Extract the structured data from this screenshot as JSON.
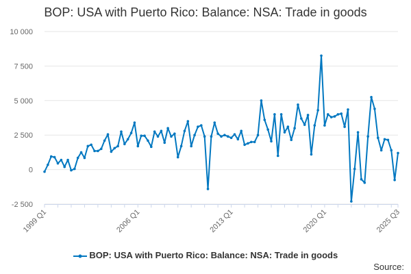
{
  "chart_data": {
    "type": "line",
    "title": "BOP: USA with Puerto Rico: Balance: NSA: Trade in goods",
    "xlabel": "",
    "ylabel": "",
    "ylim": [
      -2500,
      10000
    ],
    "yticks": [
      -2500,
      0,
      2500,
      5000,
      7500,
      10000
    ],
    "ytick_labels": [
      "-2 500",
      "0",
      "2 500",
      "5 000",
      "7 500",
      "10 000"
    ],
    "xtick_labels": [
      "1999 Q1",
      "2006 Q1",
      "2013 Q1",
      "2020 Q1",
      "2025 Q3"
    ],
    "grid": true,
    "legend_position": "bottom",
    "color": "#0077c0",
    "x": [
      "1999 Q1",
      "1999 Q2",
      "1999 Q3",
      "1999 Q4",
      "2000 Q1",
      "2000 Q2",
      "2000 Q3",
      "2000 Q4",
      "2001 Q1",
      "2001 Q2",
      "2001 Q3",
      "2001 Q4",
      "2002 Q1",
      "2002 Q2",
      "2002 Q3",
      "2002 Q4",
      "2003 Q1",
      "2003 Q2",
      "2003 Q3",
      "2003 Q4",
      "2004 Q1",
      "2004 Q2",
      "2004 Q3",
      "2004 Q4",
      "2005 Q1",
      "2005 Q2",
      "2005 Q3",
      "2005 Q4",
      "2006 Q1",
      "2006 Q2",
      "2006 Q3",
      "2006 Q4",
      "2007 Q1",
      "2007 Q2",
      "2007 Q3",
      "2007 Q4",
      "2008 Q1",
      "2008 Q2",
      "2008 Q3",
      "2008 Q4",
      "2009 Q1",
      "2009 Q2",
      "2009 Q3",
      "2009 Q4",
      "2010 Q1",
      "2010 Q2",
      "2010 Q3",
      "2010 Q4",
      "2011 Q1",
      "2011 Q2",
      "2011 Q3",
      "2011 Q4",
      "2012 Q1",
      "2012 Q2",
      "2012 Q3",
      "2012 Q4",
      "2013 Q1",
      "2013 Q2",
      "2013 Q3",
      "2013 Q4",
      "2014 Q1",
      "2014 Q2",
      "2014 Q3",
      "2014 Q4",
      "2015 Q1",
      "2015 Q2",
      "2015 Q3",
      "2015 Q4",
      "2016 Q1",
      "2016 Q2",
      "2016 Q3",
      "2016 Q4",
      "2017 Q1",
      "2017 Q2",
      "2017 Q3",
      "2017 Q4",
      "2018 Q1",
      "2018 Q2",
      "2018 Q3",
      "2018 Q4",
      "2019 Q1",
      "2019 Q2",
      "2019 Q3",
      "2019 Q4",
      "2020 Q1",
      "2020 Q2",
      "2020 Q3",
      "2020 Q4",
      "2021 Q1",
      "2021 Q2",
      "2021 Q3",
      "2021 Q4",
      "2022 Q1",
      "2022 Q2",
      "2022 Q3",
      "2022 Q4",
      "2023 Q1",
      "2023 Q2",
      "2023 Q3",
      "2023 Q4",
      "2024 Q1",
      "2024 Q2",
      "2024 Q3",
      "2024 Q4",
      "2025 Q1",
      "2025 Q2",
      "2025 Q3"
    ],
    "series": [
      {
        "name": "BOP: USA with Puerto Rico: Balance: NSA: Trade in goods",
        "values": [
          -150,
          350,
          950,
          900,
          450,
          700,
          200,
          700,
          -50,
          50,
          850,
          1250,
          850,
          1700,
          1800,
          1350,
          1350,
          1500,
          2100,
          2550,
          1300,
          1550,
          1700,
          2750,
          1850,
          2200,
          2650,
          3400,
          1700,
          2450,
          2450,
          2100,
          1650,
          2750,
          2400,
          2800,
          1950,
          3000,
          2400,
          2600,
          900,
          1700,
          2800,
          3500,
          1700,
          2500,
          3100,
          3200,
          2400,
          -1400,
          2400,
          3400,
          2600,
          2400,
          2500,
          2400,
          2300,
          2550,
          2200,
          2800,
          1800,
          1900,
          2000,
          2000,
          2500,
          5000,
          3600,
          2900,
          2050,
          4000,
          1000,
          4000,
          2700,
          3100,
          2150,
          3000,
          4700,
          3700,
          3250,
          3950,
          1100,
          3200,
          4300,
          8250,
          3200,
          4000,
          3800,
          3850,
          4000,
          4050,
          3100,
          4350,
          -2300,
          50,
          2700,
          -700,
          -950,
          2400,
          5250,
          4400,
          2300,
          1400,
          2200,
          2150,
          1400,
          -750,
          1200
        ]
      }
    ]
  },
  "source_label": "Source:"
}
